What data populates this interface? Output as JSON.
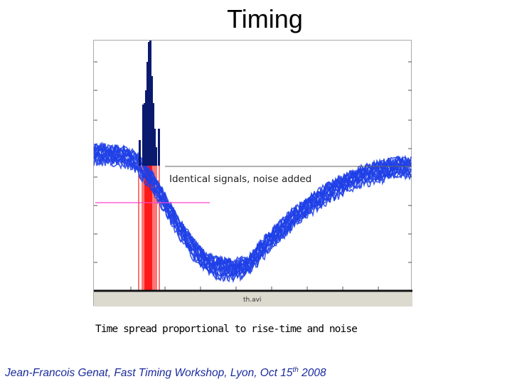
{
  "slide": {
    "title": "Timing",
    "caption": "Time spread proportional to rise-time and noise",
    "footer_main": "Jean-Francois Genat, Fast Timing Workshop, Lyon,   Oct 15",
    "footer_sup": "th",
    "footer_end": " 2008"
  },
  "figure": {
    "annotation": "Identical signals, noise added",
    "file_label": "th.avi",
    "colors": {
      "waveform": "#1f3fe6",
      "histogram": "#0a1a6e",
      "threshold_markers": "#ff1a1a",
      "threshold_line": "#ff44cc",
      "border": "#a9a9a9"
    }
  }
}
